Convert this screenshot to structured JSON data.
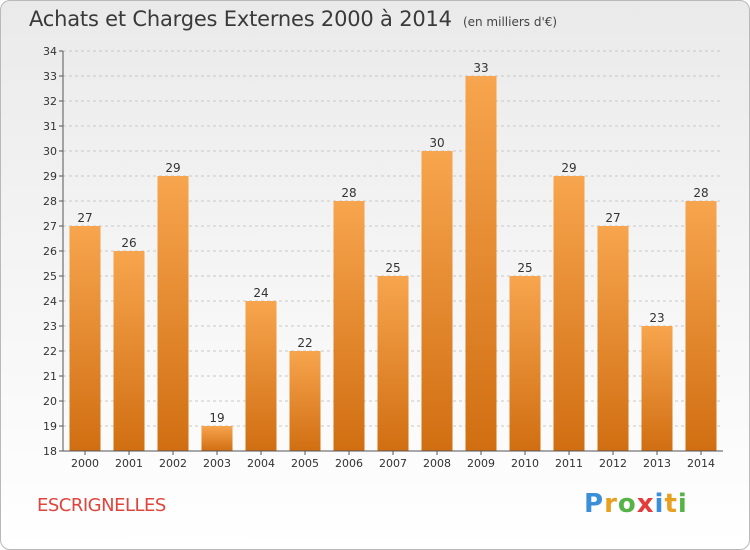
{
  "title": "Achats et Charges Externes 2000 à 2014",
  "subtitle": "(en milliers d'€)",
  "place": "ESCRIGNELLES",
  "logo": {
    "letters": [
      "P",
      "r",
      "o",
      "x",
      "i",
      "t",
      "i"
    ],
    "colors": [
      "#3b8fd9",
      "#e8a020",
      "#56b447",
      "#e23d3a",
      "#3b8fd9",
      "#e8a020",
      "#56b447"
    ]
  },
  "colors": {
    "bar_top": "#f7a54e",
    "bar_bottom": "#d16e12",
    "grid": "#c8c8c8"
  },
  "chart_data": {
    "type": "bar",
    "categories": [
      "2000",
      "2001",
      "2002",
      "2003",
      "2004",
      "2005",
      "2006",
      "2007",
      "2008",
      "2009",
      "2010",
      "2011",
      "2012",
      "2013",
      "2014"
    ],
    "values": [
      27,
      26,
      29,
      19,
      24,
      22,
      28,
      25,
      30,
      33,
      25,
      29,
      27,
      23,
      28
    ],
    "title": "Achats et Charges Externes 2000 à 2014",
    "xlabel": "",
    "ylabel": "",
    "ylim": [
      18,
      34
    ],
    "yticks": [
      18,
      19,
      20,
      21,
      22,
      23,
      24,
      25,
      26,
      27,
      28,
      29,
      30,
      31,
      32,
      33,
      34
    ],
    "grid": true,
    "data_labels": true
  }
}
